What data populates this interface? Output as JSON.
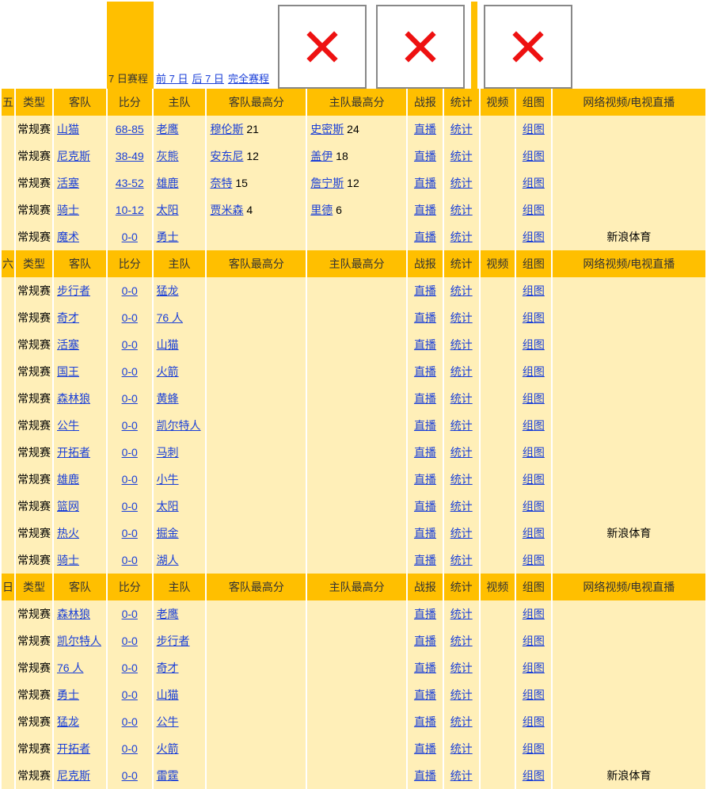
{
  "nav": {
    "items": [
      {
        "label": "7 日赛程",
        "active": true
      },
      {
        "label": "前 7 日",
        "active": false
      },
      {
        "label": "后 7 日",
        "active": false
      },
      {
        "label": "完全赛程",
        "active": false
      }
    ]
  },
  "columns": {
    "day": "",
    "type": "类型",
    "away": "客队",
    "score": "比分",
    "home": "主队",
    "away_high": "客队最高分",
    "home_high": "主队最高分",
    "report": "战报",
    "stats": "统计",
    "video": "视频",
    "photo": "组图",
    "net": "网络视频/电视直播"
  },
  "groups": [
    {
      "day": "五",
      "rows": [
        {
          "type": "常规赛",
          "away": "山猫",
          "score": "68-85",
          "home": "老鹰",
          "ap": "穆伦斯",
          "as": "21",
          "hp": "史密斯",
          "hs": "24",
          "report": "直播",
          "stats": "统计",
          "photo": "组图",
          "net": ""
        },
        {
          "type": "常规赛",
          "away": "尼克斯",
          "score": "38-49",
          "home": "灰熊",
          "ap": "安东尼",
          "as": "12",
          "hp": "盖伊",
          "hs": "18",
          "report": "直播",
          "stats": "统计",
          "photo": "组图",
          "net": ""
        },
        {
          "type": "常规赛",
          "away": "活塞",
          "score": "43-52",
          "home": "雄鹿",
          "ap": "奈特",
          "as": "15",
          "hp": "詹宁斯",
          "hs": "12",
          "report": "直播",
          "stats": "统计",
          "photo": "组图",
          "net": ""
        },
        {
          "type": "常规赛",
          "away": "骑士",
          "score": "10-12",
          "home": "太阳",
          "ap": "贾米森",
          "as": "4",
          "hp": "里德",
          "hs": "6",
          "report": "直播",
          "stats": "统计",
          "photo": "组图",
          "net": ""
        },
        {
          "type": "常规赛",
          "away": "魔术",
          "score": "0-0",
          "home": "勇士",
          "ap": "",
          "as": "",
          "hp": "",
          "hs": "",
          "report": "直播",
          "stats": "统计",
          "photo": "组图",
          "net": "新浪体育"
        }
      ]
    },
    {
      "day": "六",
      "rows": [
        {
          "type": "常规赛",
          "away": "步行者",
          "score": "0-0",
          "home": "猛龙",
          "ap": "",
          "as": "",
          "hp": "",
          "hs": "",
          "report": "直播",
          "stats": "统计",
          "photo": "组图",
          "net": ""
        },
        {
          "type": "常规赛",
          "away": "奇才",
          "score": "0-0",
          "home": "76 人",
          "ap": "",
          "as": "",
          "hp": "",
          "hs": "",
          "report": "直播",
          "stats": "统计",
          "photo": "组图",
          "net": ""
        },
        {
          "type": "常规赛",
          "away": "活塞",
          "score": "0-0",
          "home": "山猫",
          "ap": "",
          "as": "",
          "hp": "",
          "hs": "",
          "report": "直播",
          "stats": "统计",
          "photo": "组图",
          "net": ""
        },
        {
          "type": "常规赛",
          "away": "国王",
          "score": "0-0",
          "home": "火箭",
          "ap": "",
          "as": "",
          "hp": "",
          "hs": "",
          "report": "直播",
          "stats": "统计",
          "photo": "组图",
          "net": ""
        },
        {
          "type": "常规赛",
          "away": "森林狼",
          "score": "0-0",
          "home": "黄蜂",
          "ap": "",
          "as": "",
          "hp": "",
          "hs": "",
          "report": "直播",
          "stats": "统计",
          "photo": "组图",
          "net": ""
        },
        {
          "type": "常规赛",
          "away": "公牛",
          "score": "0-0",
          "home": "凯尔特人",
          "ap": "",
          "as": "",
          "hp": "",
          "hs": "",
          "report": "直播",
          "stats": "统计",
          "photo": "组图",
          "net": ""
        },
        {
          "type": "常规赛",
          "away": "开拓者",
          "score": "0-0",
          "home": "马刺",
          "ap": "",
          "as": "",
          "hp": "",
          "hs": "",
          "report": "直播",
          "stats": "统计",
          "photo": "组图",
          "net": ""
        },
        {
          "type": "常规赛",
          "away": "雄鹿",
          "score": "0-0",
          "home": "小牛",
          "ap": "",
          "as": "",
          "hp": "",
          "hs": "",
          "report": "直播",
          "stats": "统计",
          "photo": "组图",
          "net": ""
        },
        {
          "type": "常规赛",
          "away": "篮网",
          "score": "0-0",
          "home": "太阳",
          "ap": "",
          "as": "",
          "hp": "",
          "hs": "",
          "report": "直播",
          "stats": "统计",
          "photo": "组图",
          "net": ""
        },
        {
          "type": "常规赛",
          "away": "热火",
          "score": "0-0",
          "home": "掘金",
          "ap": "",
          "as": "",
          "hp": "",
          "hs": "",
          "report": "直播",
          "stats": "统计",
          "photo": "组图",
          "net": "新浪体育"
        },
        {
          "type": "常规赛",
          "away": "骑士",
          "score": "0-0",
          "home": "湖人",
          "ap": "",
          "as": "",
          "hp": "",
          "hs": "",
          "report": "直播",
          "stats": "统计",
          "photo": "组图",
          "net": ""
        }
      ]
    },
    {
      "day": "日",
      "rows": [
        {
          "type": "常规赛",
          "away": "森林狼",
          "score": "0-0",
          "home": "老鹰",
          "ap": "",
          "as": "",
          "hp": "",
          "hs": "",
          "report": "直播",
          "stats": "统计",
          "photo": "组图",
          "net": ""
        },
        {
          "type": "常规赛",
          "away": "凯尔特人",
          "score": "0-0",
          "home": "步行者",
          "ap": "",
          "as": "",
          "hp": "",
          "hs": "",
          "report": "直播",
          "stats": "统计",
          "photo": "组图",
          "net": ""
        },
        {
          "type": "常规赛",
          "away": "76 人",
          "score": "0-0",
          "home": "奇才",
          "ap": "",
          "as": "",
          "hp": "",
          "hs": "",
          "report": "直播",
          "stats": "统计",
          "photo": "组图",
          "net": ""
        },
        {
          "type": "常规赛",
          "away": "勇士",
          "score": "0-0",
          "home": "山猫",
          "ap": "",
          "as": "",
          "hp": "",
          "hs": "",
          "report": "直播",
          "stats": "统计",
          "photo": "组图",
          "net": ""
        },
        {
          "type": "常规赛",
          "away": "猛龙",
          "score": "0-0",
          "home": "公牛",
          "ap": "",
          "as": "",
          "hp": "",
          "hs": "",
          "report": "直播",
          "stats": "统计",
          "photo": "组图",
          "net": ""
        },
        {
          "type": "常规赛",
          "away": "开拓者",
          "score": "0-0",
          "home": "火箭",
          "ap": "",
          "as": "",
          "hp": "",
          "hs": "",
          "report": "直播",
          "stats": "统计",
          "photo": "组图",
          "net": ""
        },
        {
          "type": "常规赛",
          "away": "尼克斯",
          "score": "0-0",
          "home": "雷霆",
          "ap": "",
          "as": "",
          "hp": "",
          "hs": "",
          "report": "直播",
          "stats": "统计",
          "photo": "组图",
          "net": "新浪体育"
        }
      ]
    }
  ],
  "style": {
    "header_bg": "#ffbf00",
    "row_bg": "#ffefb8",
    "link_color": "#1a3fd8"
  }
}
